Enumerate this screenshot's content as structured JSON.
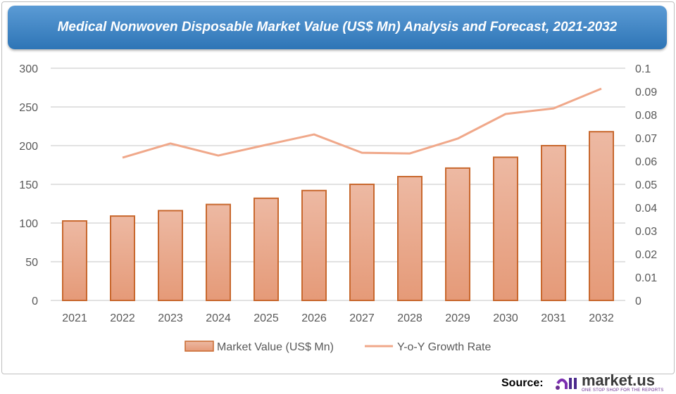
{
  "chart_data": {
    "type": "bar+line",
    "title": "Medical Nonwoven Disposable Market Value (US$ Mn) Analysis and Forecast, 2021-2032",
    "categories": [
      "2021",
      "2022",
      "2023",
      "2024",
      "2025",
      "2026",
      "2027",
      "2028",
      "2029",
      "2030",
      "2031",
      "2032"
    ],
    "series": [
      {
        "name": "Market Value (US$ Mn)",
        "type": "bar",
        "axis": "left",
        "color": "#e8a88a",
        "values": [
          102.7,
          109,
          116,
          124,
          132,
          142,
          150,
          160,
          171,
          185,
          200,
          218
        ]
      },
      {
        "name": "Y-o-Y Growth Rate",
        "type": "line",
        "axis": "right",
        "color": "#f0a88a",
        "values": [
          null,
          0.0615,
          0.0676,
          0.0624,
          0.067,
          0.0715,
          0.0636,
          0.0633,
          0.0697,
          0.0803,
          0.0827,
          0.0912
        ]
      }
    ],
    "ylim": [
      0,
      300
    ],
    "yticks": [
      "0",
      "50",
      "100",
      "150",
      "200",
      "250",
      "300"
    ],
    "y2lim": [
      0,
      0.1
    ],
    "y2ticks": [
      "0",
      "0.01",
      "0.02",
      "0.03",
      "0.04",
      "0.05",
      "0.06",
      "0.07",
      "0.08",
      "0.09",
      "0.1"
    ],
    "grid": true,
    "legend": "bottom"
  },
  "footer": {
    "source_label": "Source:",
    "logo_text": "market.us",
    "logo_tagline": "ONE STOP SHOP FOR THE REPORTS"
  }
}
